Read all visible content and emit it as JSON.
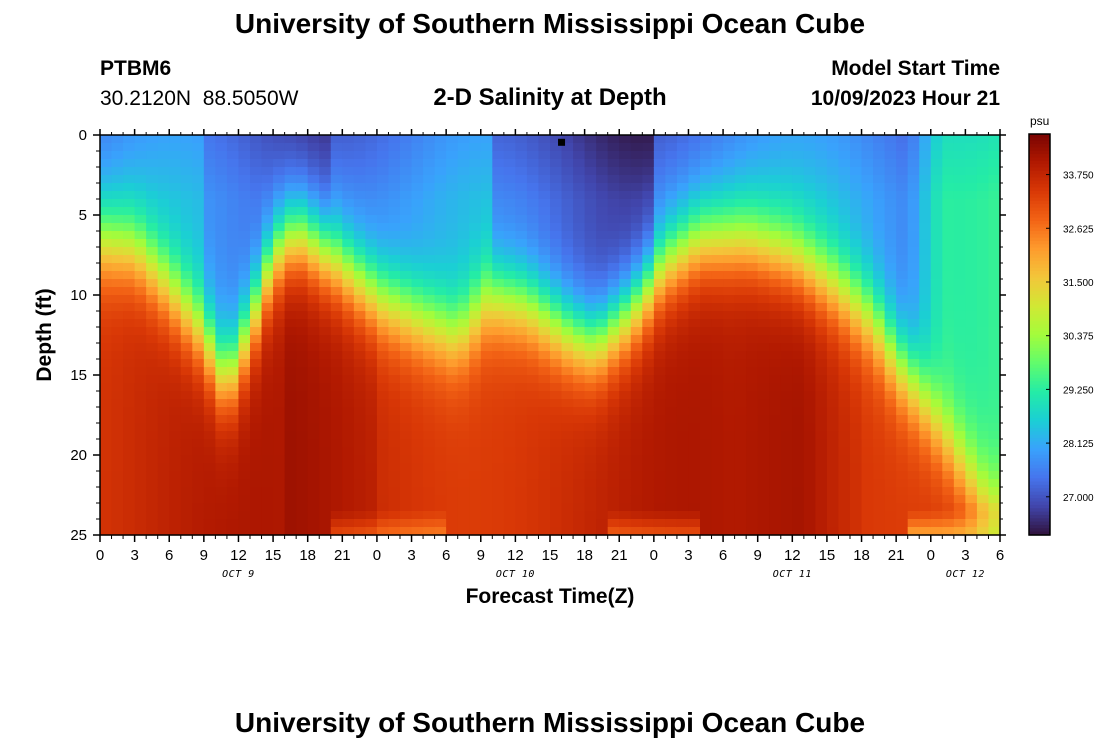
{
  "page": {
    "title_top": "University of Southern Mississippi Ocean Cube",
    "title_bottom": "University of Southern Mississippi Ocean Cube",
    "station_id": "PTBM6",
    "coordinates": "30.2120N  88.5050W",
    "plot_title": "2-D Salinity at Depth",
    "model_label": "Model Start Time",
    "model_time": "10/09/2023 Hour 21"
  },
  "colors": {
    "colormap": [
      "#30123b",
      "#4145ab",
      "#4675ed",
      "#39a2fc",
      "#1bcfd4",
      "#24eca6",
      "#61fc6c",
      "#a4fc3b",
      "#d1e834",
      "#f3c63a",
      "#fe9b2d",
      "#f36315",
      "#d93806",
      "#b11901",
      "#7a0402"
    ]
  },
  "chart_data": {
    "type": "heatmap",
    "title": "2-D Salinity at Depth",
    "xlabel": "Forecast Time(Z)",
    "ylabel": "Depth (ft)",
    "x_ticks": [
      "0",
      "3",
      "6",
      "9",
      "12",
      "15",
      "18",
      "21",
      "0",
      "3",
      "6",
      "9",
      "12",
      "15",
      "18",
      "21",
      "0",
      "3",
      "6",
      "9",
      "12",
      "15",
      "18",
      "21",
      "0",
      "3",
      "6"
    ],
    "x_range_hours": [
      0,
      78
    ],
    "day_labels": [
      {
        "label": "OCT 9",
        "hour": 12
      },
      {
        "label": "OCT 10",
        "hour": 36
      },
      {
        "label": "OCT 11",
        "hour": 60
      },
      {
        "label": "OCT 12",
        "hour": 75
      }
    ],
    "y_ticks": [
      "0",
      "5",
      "10",
      "15",
      "20",
      "25"
    ],
    "ylim": [
      0,
      25
    ],
    "colorbar": {
      "unit": "psu",
      "range": [
        26.2,
        34.6
      ],
      "tick_values": [
        33.75,
        32.625,
        31.5,
        30.375,
        29.25,
        28.125,
        27.0
      ],
      "tick_labels": [
        "33.750",
        "32.625",
        "31.500",
        "30.375",
        "29.250",
        "28.125",
        "27.000"
      ]
    },
    "marker": {
      "hour": 40,
      "depth": 0.3
    },
    "halocline_depth_ft": [
      {
        "hour": 0,
        "depth": 6.5
      },
      {
        "hour": 3,
        "depth": 7
      },
      {
        "hour": 6,
        "depth": 9.5
      },
      {
        "hour": 9,
        "depth": 12.5
      },
      {
        "hour": 11,
        "depth": 15.5
      },
      {
        "hour": 13,
        "depth": 12
      },
      {
        "hour": 15,
        "depth": 7.5
      },
      {
        "hour": 17,
        "depth": 6
      },
      {
        "hour": 20,
        "depth": 7.5
      },
      {
        "hour": 24,
        "depth": 10
      },
      {
        "hour": 28,
        "depth": 11.5
      },
      {
        "hour": 31,
        "depth": 12.5
      },
      {
        "hour": 34,
        "depth": 10
      },
      {
        "hour": 37,
        "depth": 10.5
      },
      {
        "hour": 41,
        "depth": 12.5
      },
      {
        "hour": 43,
        "depth": 13
      },
      {
        "hour": 46,
        "depth": 11
      },
      {
        "hour": 49,
        "depth": 8
      },
      {
        "hour": 52,
        "depth": 6.5
      },
      {
        "hour": 56,
        "depth": 6.5
      },
      {
        "hour": 60,
        "depth": 7.5
      },
      {
        "hour": 64,
        "depth": 9.5
      },
      {
        "hour": 67,
        "depth": 11.5
      },
      {
        "hour": 69,
        "depth": 14
      },
      {
        "hour": 71,
        "depth": 16
      },
      {
        "hour": 73,
        "depth": 18.5
      },
      {
        "hour": 75,
        "depth": 21
      },
      {
        "hour": 77,
        "depth": 23.5
      },
      {
        "hour": 78,
        "depth": 24
      }
    ]
  }
}
